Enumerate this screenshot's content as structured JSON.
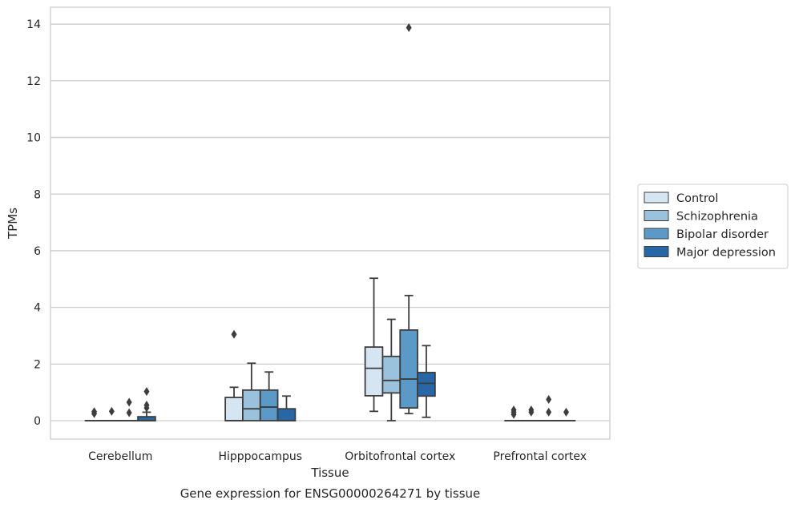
{
  "chart_data": {
    "type": "boxplot",
    "caption": "Gene expression for ENSG00000264271 by tissue",
    "xlabel": "Tissue",
    "ylabel": "TPMs",
    "ylim": [
      -0.65,
      14.6
    ],
    "yticks": [
      0,
      2,
      4,
      6,
      8,
      10,
      12,
      14
    ],
    "grid": "horizontal",
    "legend_position": "right",
    "categories": [
      "Cerebellum",
      "Hipppocampus",
      "Orbitofrontal cortex",
      "Prefrontal cortex"
    ],
    "series": [
      {
        "name": "Control",
        "color": "#d6e5f2",
        "boxes": [
          {
            "q1": 0,
            "median": 0,
            "q3": 0,
            "whisker_low": 0,
            "whisker_high": 0,
            "outliers": [
              0.25,
              0.32
            ]
          },
          {
            "q1": 0,
            "median": 0,
            "q3": 0.82,
            "whisker_low": 0,
            "whisker_high": 1.18,
            "outliers": [
              3.05
            ]
          },
          {
            "q1": 0.88,
            "median": 1.85,
            "q3": 2.6,
            "whisker_low": 0.33,
            "whisker_high": 5.03,
            "outliers": []
          },
          {
            "q1": 0,
            "median": 0,
            "q3": 0,
            "whisker_low": 0,
            "whisker_high": 0,
            "outliers": [
              0.22,
              0.3,
              0.38
            ]
          }
        ]
      },
      {
        "name": "Schizophrenia",
        "color": "#9ac2dc",
        "boxes": [
          {
            "q1": 0,
            "median": 0,
            "q3": 0,
            "whisker_low": 0,
            "whisker_high": 0,
            "outliers": [
              0.33
            ]
          },
          {
            "q1": 0,
            "median": 0.42,
            "q3": 1.08,
            "whisker_low": 0,
            "whisker_high": 2.03,
            "outliers": []
          },
          {
            "q1": 0.98,
            "median": 1.42,
            "q3": 2.27,
            "whisker_low": 0,
            "whisker_high": 3.58,
            "outliers": []
          },
          {
            "q1": 0,
            "median": 0,
            "q3": 0,
            "whisker_low": 0,
            "whisker_high": 0,
            "outliers": [
              0.3,
              0.38
            ]
          }
        ]
      },
      {
        "name": "Bipolar disorder",
        "color": "#5b9ac6",
        "boxes": [
          {
            "q1": 0,
            "median": 0,
            "q3": 0,
            "whisker_low": 0,
            "whisker_high": 0,
            "outliers": [
              0.28,
              0.65
            ]
          },
          {
            "q1": 0,
            "median": 0.48,
            "q3": 1.08,
            "whisker_low": 0,
            "whisker_high": 1.72,
            "outliers": []
          },
          {
            "q1": 0.45,
            "median": 1.47,
            "q3": 3.2,
            "whisker_low": 0.25,
            "whisker_high": 4.42,
            "outliers": [
              13.88
            ]
          },
          {
            "q1": 0,
            "median": 0,
            "q3": 0,
            "whisker_low": 0,
            "whisker_high": 0,
            "outliers": [
              0.3,
              0.75
            ]
          }
        ]
      },
      {
        "name": "Major depression",
        "color": "#2767a6",
        "boxes": [
          {
            "q1": 0,
            "median": 0,
            "q3": 0.14,
            "whisker_low": 0,
            "whisker_high": 0.3,
            "outliers": [
              0.45,
              0.55,
              1.03
            ]
          },
          {
            "q1": 0,
            "median": 0,
            "q3": 0.42,
            "whisker_low": 0,
            "whisker_high": 0.87,
            "outliers": []
          },
          {
            "q1": 0.87,
            "median": 1.32,
            "q3": 1.7,
            "whisker_low": 0.12,
            "whisker_high": 2.65,
            "outliers": []
          },
          {
            "q1": 0,
            "median": 0,
            "q3": 0,
            "whisker_low": 0,
            "whisker_high": 0,
            "outliers": [
              0.3
            ]
          }
        ]
      }
    ]
  }
}
